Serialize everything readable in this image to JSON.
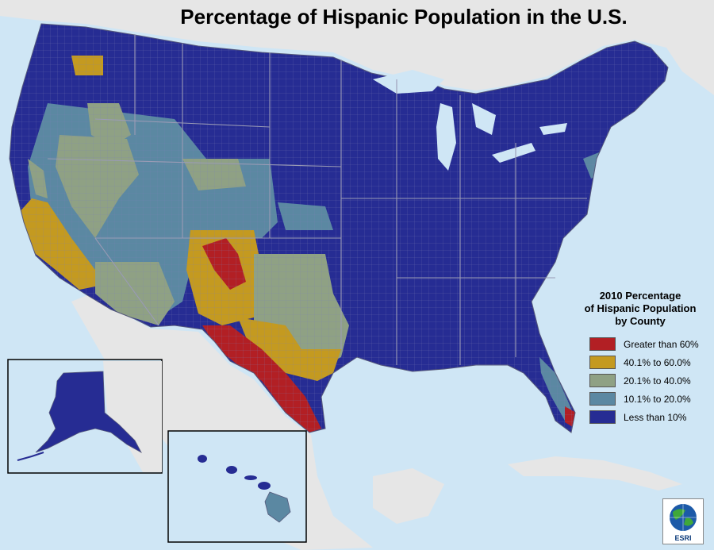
{
  "map": {
    "title": "Percentage of Hispanic Population in the U.S.",
    "legend": {
      "title_lines": [
        "2010 Percentage",
        "of Hispanic Population",
        "by County"
      ],
      "classes": [
        {
          "label": "Greater than 60%",
          "color": "#b21f24"
        },
        {
          "label": "40.1% to 60.0%",
          "color": "#c49a20"
        },
        {
          "label": "20.1% to 40.0%",
          "color": "#8fa184"
        },
        {
          "label": "10.1% to 20.0%",
          "color": "#5b88a2"
        },
        {
          "label": "Less than 10%",
          "color": "#262c93"
        }
      ]
    },
    "logo_text": "ESRI",
    "colors": {
      "ocean": "#cfe6f5",
      "land_outside": "#e6e6e6",
      "boundary": "#8c8c9c"
    }
  }
}
